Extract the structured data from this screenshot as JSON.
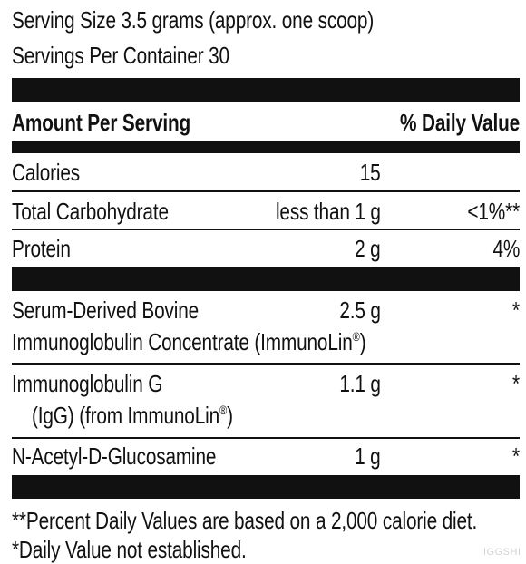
{
  "serving": {
    "size": "Serving Size 3.5 grams (approx. one scoop)",
    "per_container": "Servings Per Container 30"
  },
  "header": {
    "amount_label": "Amount Per Serving",
    "dv_label": "% Daily Value"
  },
  "rows": {
    "calories": {
      "name": "Calories",
      "amount": "15",
      "dv": ""
    },
    "carbs": {
      "name": "Total Carbohydrate",
      "amount": "less than 1 g",
      "dv": "<1%**"
    },
    "protein": {
      "name": "Protein",
      "amount": "2 g",
      "dv": "4%"
    },
    "serum": {
      "name_line1": "Serum-Derived Bovine",
      "name_line2": "Immunoglobulin Concentrate (ImmunoLin",
      "reg": "®",
      "close": ")",
      "amount": "2.5 g",
      "dv": "*"
    },
    "igg": {
      "name_line1": "Immunoglobulin G",
      "name_line2": "(IgG) (from ImmunoLin",
      "reg": "®",
      "close": ")",
      "amount": "1.1 g",
      "dv": "*"
    },
    "nag": {
      "name": "N-Acetyl-D-Glucosamine",
      "amount": "1 g",
      "dv": "*"
    }
  },
  "footnotes": {
    "line1": "**Percent Daily Values are based on a 2,000 calorie diet.",
    "line2": "*Daily Value not established."
  },
  "watermark": "IGGSHI",
  "colors": {
    "ink": "#111111",
    "background": "#ffffff",
    "watermark": "#d3d3d3"
  }
}
